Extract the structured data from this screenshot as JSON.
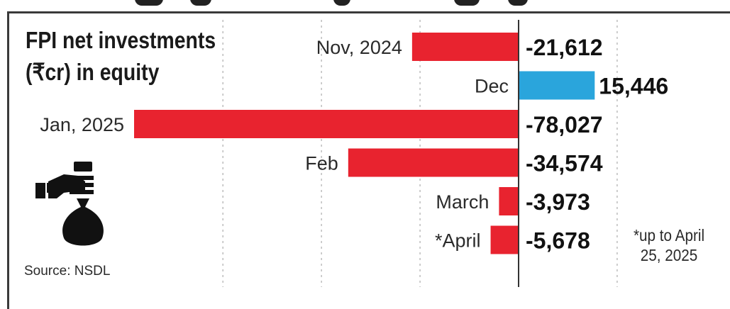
{
  "chart_data": {
    "type": "bar",
    "orientation": "horizontal",
    "title": "FPI net investments (₹cr) in equity",
    "source": "Source: NSDL",
    "footnote": "*up to April 25, 2025",
    "categories": [
      "Nov, 2024",
      "Dec",
      "Jan, 2025",
      "Feb",
      "March",
      "*April"
    ],
    "values": [
      -21612,
      15446,
      -78027,
      -34574,
      -3973,
      -5678
    ],
    "value_labels": [
      "-21,612",
      "15,446",
      "-78,027",
      "-34,574",
      "-3,973",
      "-5,678"
    ],
    "colors": {
      "negative": "#e8232f",
      "positive": "#2aa5dc"
    },
    "grid": true,
    "legend": "none",
    "xlim": [
      -80000,
      20000
    ]
  },
  "icons": {
    "logo": "money-bag-hand-icon"
  }
}
